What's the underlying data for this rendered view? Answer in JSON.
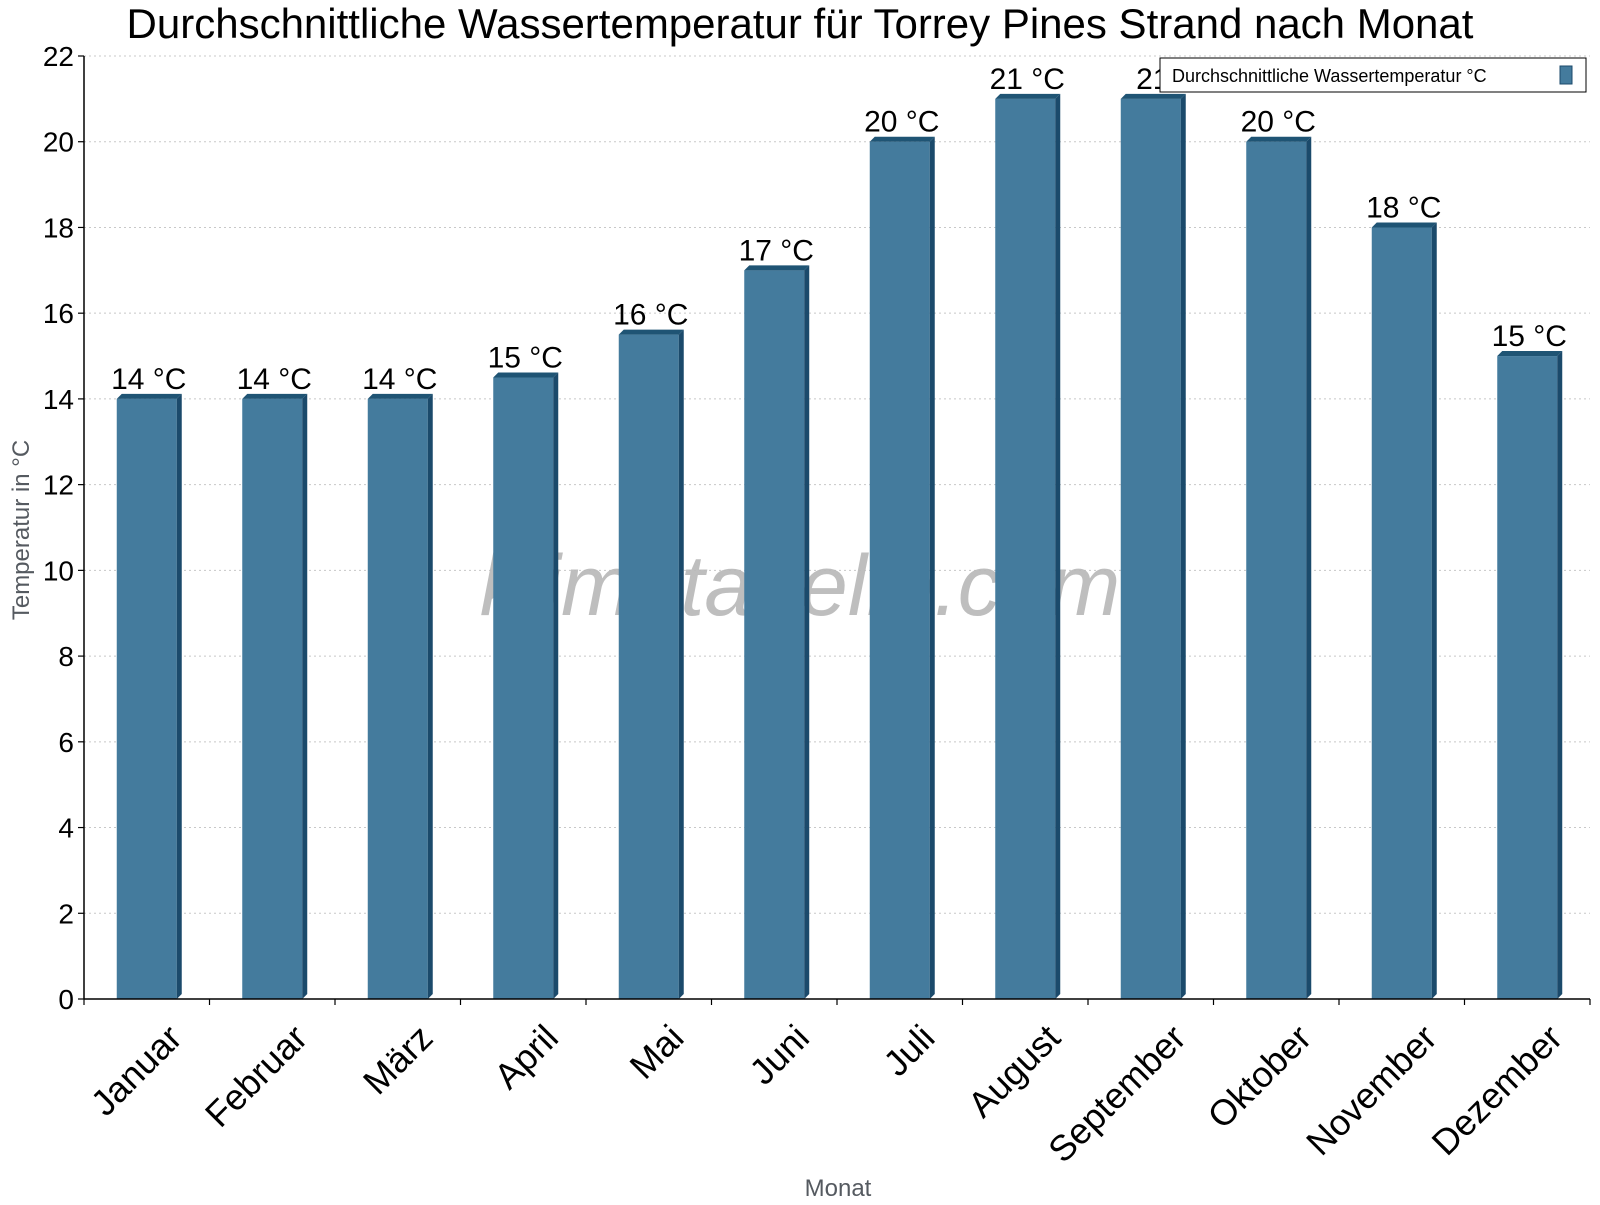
{
  "colors": {
    "bar_front": "#447b9d",
    "bar_side": "#1b4a6b",
    "bar_top": "#1f5474",
    "grid": "#c8c8c8"
  },
  "watermark": "klimatabelle.com",
  "chart_data": {
    "type": "bar",
    "title": "Durchschnittliche Wassertemperatur für Torrey Pines Strand nach Monat",
    "xlabel": "Monat",
    "ylabel": "Temperatur in °C",
    "ylim": [
      0,
      22
    ],
    "yticks": [
      "0",
      "2",
      "4",
      "6",
      "8",
      "10",
      "12",
      "14",
      "16",
      "18",
      "20",
      "22"
    ],
    "grid": true,
    "legend_position": "top-right",
    "categories": [
      "Januar",
      "Februar",
      "März",
      "April",
      "Mai",
      "Juni",
      "Juli",
      "August",
      "September",
      "Oktober",
      "November",
      "Dezember"
    ],
    "series": [
      {
        "name": "Durchschnittliche Wassertemperatur °C",
        "values": [
          14,
          14,
          14,
          14.5,
          15.5,
          17,
          20,
          21,
          21,
          20,
          18,
          15
        ],
        "labels": [
          "14 °C",
          "14 °C",
          "14 °C",
          "15 °C",
          "16 °C",
          "17 °C",
          "20 °C",
          "21 °C",
          "21",
          "20 °C",
          "18 °C",
          "15 °C"
        ]
      }
    ]
  }
}
